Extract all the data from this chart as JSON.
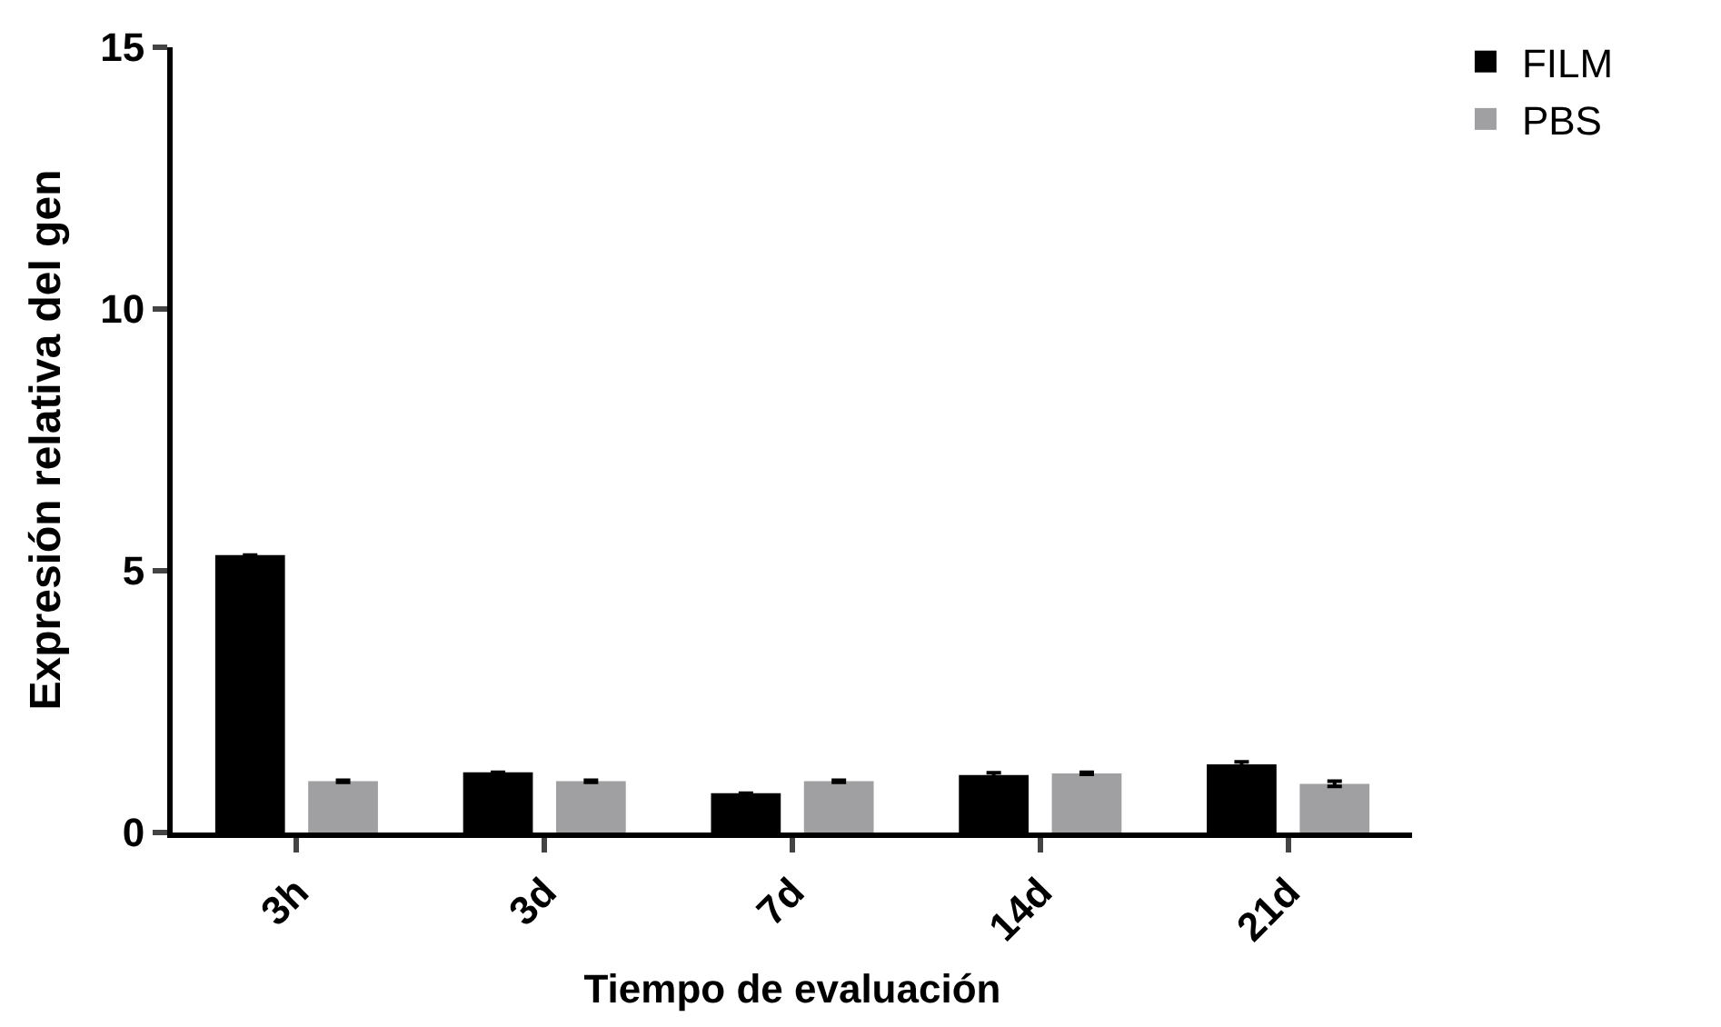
{
  "chart_data": {
    "type": "bar",
    "xlabel": "Tiempo de evaluación",
    "ylabel": "Expresión relativa del gen",
    "categories": [
      "3h",
      "3d",
      "7d",
      "14d",
      "21d"
    ],
    "series": [
      {
        "name": "FILM",
        "color": "#000000",
        "values": [
          5.3,
          1.15,
          0.75,
          1.1,
          1.3
        ],
        "errors": [
          null,
          null,
          null,
          0.04,
          0.05
        ]
      },
      {
        "name": "PBS",
        "color": "#a0a0a2",
        "values": [
          0.98,
          0.98,
          0.98,
          1.13,
          0.93
        ],
        "errors": [
          0.02,
          0.02,
          0.02,
          0.02,
          0.05
        ]
      }
    ],
    "ylim": [
      0,
      15
    ],
    "yticks": [
      0,
      5,
      10,
      15
    ],
    "legend": "top right"
  }
}
